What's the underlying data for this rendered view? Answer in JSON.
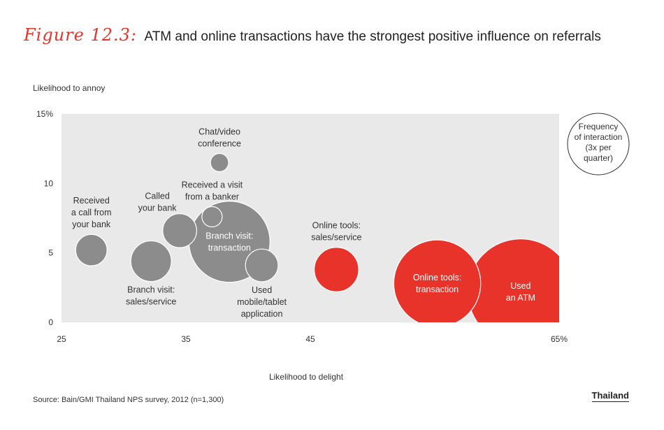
{
  "figure_label": "Figure 12.3:",
  "title": "ATM and online transactions have the strongest positive influence on referrals",
  "source": "Source: Bain/GMI Thailand NPS survey, 2012 (n=1,300)",
  "region_label": "Thailand",
  "colors": {
    "gray": "#8c8c8c",
    "red": "#e8332a",
    "plot_bg": "#e9e9e9"
  },
  "chart_data": {
    "type": "scatter",
    "subtype": "bubble",
    "xlabel": "Likelihood to delight",
    "ylabel": "Likelihood to annoy",
    "xlim": [
      25,
      65
    ],
    "ylim": [
      0,
      15
    ],
    "x_ticks": [
      {
        "value": 25,
        "label": "25"
      },
      {
        "value": 35,
        "label": "35"
      },
      {
        "value": 45,
        "label": "45"
      },
      {
        "value": 65,
        "label": "65%"
      }
    ],
    "y_ticks": [
      {
        "value": 0,
        "label": "0"
      },
      {
        "value": 5,
        "label": "5"
      },
      {
        "value": 10,
        "label": "10"
      },
      {
        "value": 15,
        "label": "15%"
      }
    ],
    "legend": {
      "lines": [
        "Frequency",
        "of interaction",
        "(3x per",
        "quarter)"
      ],
      "position": "right"
    },
    "points": [
      {
        "name": "Received a call from your bank",
        "lines": [
          "Received",
          "a call from",
          "your bank"
        ],
        "x": 27.4,
        "y": 5.2,
        "frequency": 0.6,
        "color": "gray",
        "label_pos": "above"
      },
      {
        "name": "Branch visit: sales/service",
        "lines": [
          "Branch visit:",
          "sales/service"
        ],
        "x": 32.2,
        "y": 4.4,
        "frequency": 1.0,
        "color": "gray",
        "label_pos": "below"
      },
      {
        "name": "Called your bank",
        "lines": [
          "Called",
          "your bank"
        ],
        "x": 34.5,
        "y": 6.6,
        "frequency": 0.7,
        "color": "gray",
        "label_pos": "above-left"
      },
      {
        "name": "Chat/video conference",
        "lines": [
          "Chat/video",
          "conference"
        ],
        "x": 37.7,
        "y": 11.5,
        "frequency": 0.2,
        "color": "gray",
        "label_pos": "above"
      },
      {
        "name": "Received a visit from a banker",
        "lines": [
          "Received a visit",
          "from a banker"
        ],
        "x": 37.1,
        "y": 7.6,
        "frequency": 0.25,
        "color": "gray",
        "label_pos": "above"
      },
      {
        "name": "Branch visit: transaction",
        "lines": [
          "Branch visit:",
          "transaction"
        ],
        "x": 38.5,
        "y": 5.8,
        "frequency": 4.0,
        "color": "gray",
        "label_pos": "inside"
      },
      {
        "name": "Used mobile/tablet application",
        "lines": [
          "Used",
          "mobile/tablet",
          "application"
        ],
        "x": 41.1,
        "y": 4.1,
        "frequency": 0.65,
        "color": "gray",
        "label_pos": "below"
      },
      {
        "name": "Online tools: sales/service",
        "lines": [
          "Online tools:",
          "sales/service"
        ],
        "x": 47.1,
        "y": 3.8,
        "frequency": 1.2,
        "color": "red",
        "label_pos": "above"
      },
      {
        "name": "Online tools: transaction",
        "lines": [
          "Online tools:",
          "transaction"
        ],
        "x": 55.2,
        "y": 2.8,
        "frequency": 4.6,
        "color": "red",
        "label_pos": "inside"
      },
      {
        "name": "Used an ATM",
        "lines": [
          "Used",
          "an ATM"
        ],
        "x": 61.9,
        "y": 2.2,
        "frequency": 6.8,
        "color": "red",
        "label_pos": "inside"
      }
    ]
  }
}
